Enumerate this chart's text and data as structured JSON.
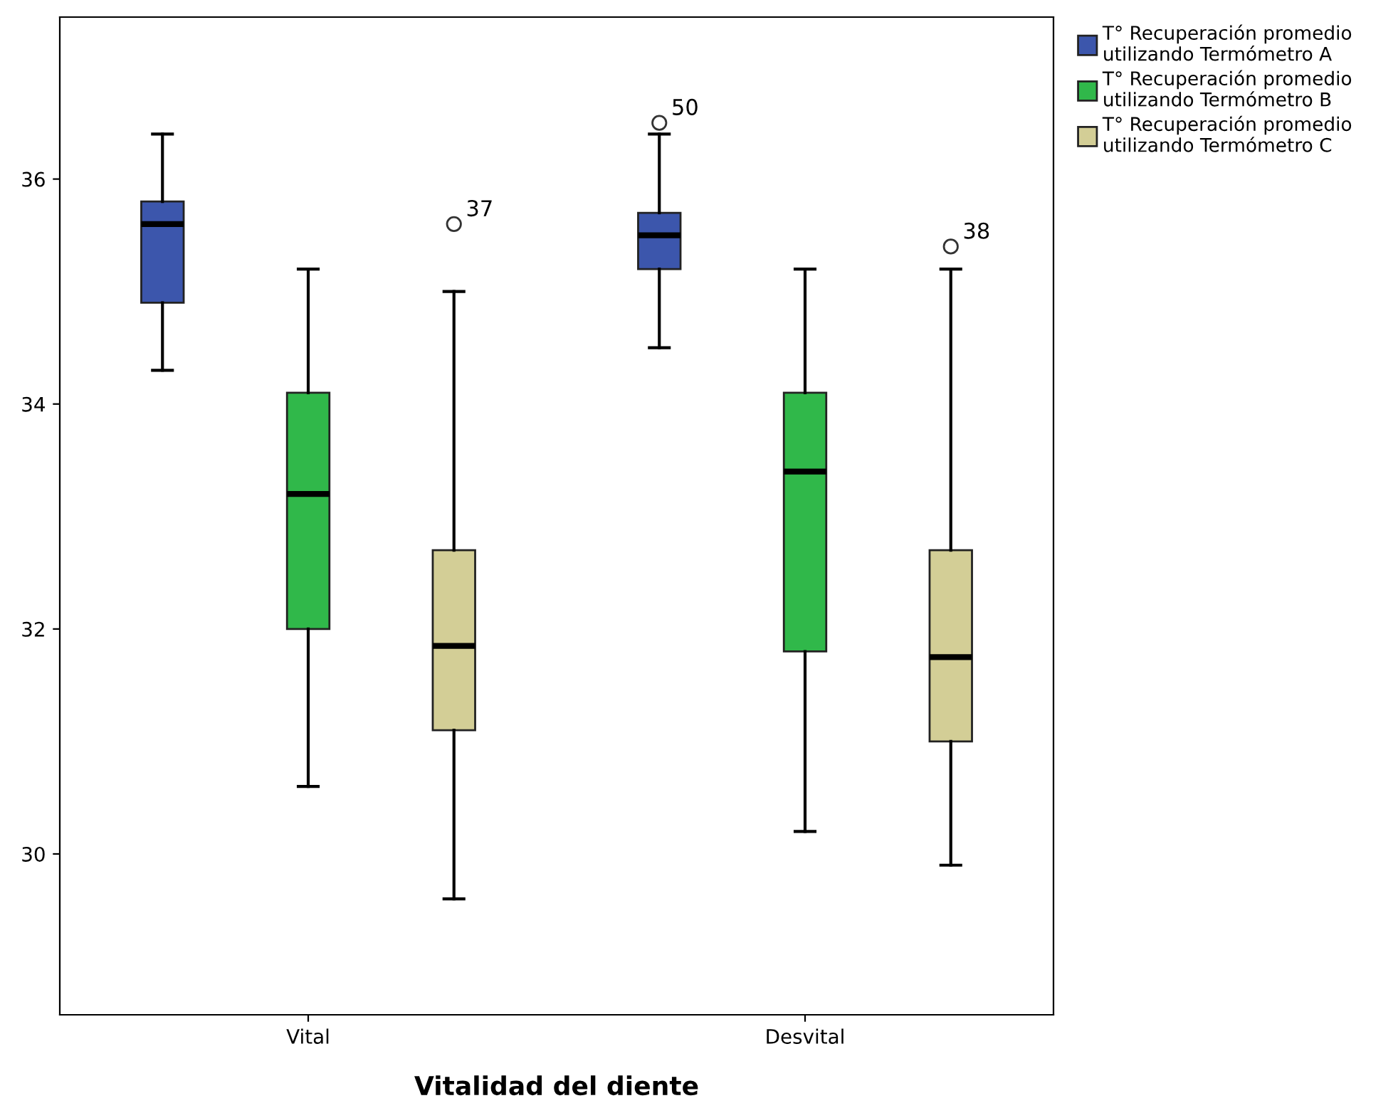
{
  "chart_data": {
    "type": "box",
    "xlabel": "Vitalidad del diente",
    "categories": [
      "Vital",
      "Desvital"
    ],
    "ylim": [
      28.57,
      37.44
    ],
    "yticks": [
      30,
      32,
      34,
      36
    ],
    "grid": false,
    "legend": "top right",
    "series": [
      {
        "name": "T° Recuperación promedio utilizando Termómetro A",
        "color": "#3c56ac",
        "boxes": [
          {
            "low": 34.3,
            "q1": 34.9,
            "median": 35.6,
            "q3": 35.8,
            "high": 36.4
          },
          {
            "low": 34.5,
            "q1": 35.2,
            "median": 35.5,
            "q3": 35.7,
            "high": 36.4,
            "outliers": [
              36.5
            ]
          }
        ]
      },
      {
        "name": "T° Recuperación promedio utilizando Termómetro B",
        "color": "#30b84a",
        "boxes": [
          {
            "low": 30.6,
            "q1": 32.0,
            "median": 33.2,
            "q3": 34.1,
            "high": 35.2
          },
          {
            "low": 30.2,
            "q1": 31.8,
            "median": 33.4,
            "q3": 34.1,
            "high": 35.2
          }
        ]
      },
      {
        "name": "T° Recuperación promedio utilizando Termómetro C",
        "color": "#d3ce96",
        "boxes": [
          {
            "low": 29.6,
            "q1": 31.1,
            "median": 31.85,
            "q3": 32.7,
            "high": 35.0,
            "outliers": [
              35.6
            ]
          },
          {
            "low": 29.9,
            "q1": 31.0,
            "median": 31.75,
            "q3": 32.7,
            "high": 35.2,
            "outliers": [
              35.4
            ]
          }
        ]
      }
    ],
    "annotations": [
      "37",
      "50",
      "38"
    ]
  }
}
